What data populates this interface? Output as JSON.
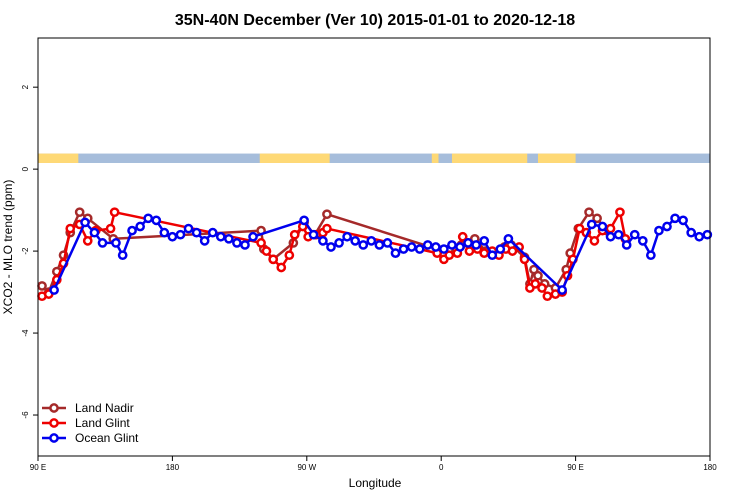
{
  "chart_data": {
    "type": "line",
    "title": "35N-40N December (Ver 10)   2015-01-01 to 2020-12-18",
    "xlabel": "Longitude",
    "ylabel": "XCO2 - MLO trend (ppm)",
    "xlim": [
      0,
      500
    ],
    "ylim": [
      -7,
      3.2
    ],
    "x_ticks": [
      {
        "value": 0,
        "label": "90 E"
      },
      {
        "value": 100,
        "label": "180"
      },
      {
        "value": 200,
        "label": "90 W"
      },
      {
        "value": 300,
        "label": "0"
      },
      {
        "value": 400,
        "label": "90 E"
      },
      {
        "value": 500,
        "label": "180"
      }
    ],
    "y_ticks": [
      {
        "value": 2,
        "label": "2"
      },
      {
        "value": 0,
        "label": "0"
      },
      {
        "value": -2,
        "label": "-2"
      },
      {
        "value": -4,
        "label": "-4"
      },
      {
        "value": -6,
        "label": "-6"
      }
    ],
    "land_ocean_band": {
      "y_range": [
        0.15,
        0.38
      ],
      "ocean_color": "#a6bddb",
      "land_color": "#fed976",
      "land_segments": [
        [
          0,
          30
        ],
        [
          165,
          217
        ],
        [
          293,
          298
        ],
        [
          308,
          364
        ],
        [
          372,
          400
        ]
      ]
    },
    "legend_position": "bottom-left",
    "series": [
      {
        "name": "Land Nadir",
        "color": "#a52a2a",
        "x": [
          3,
          8,
          14,
          19,
          24,
          31,
          37,
          56,
          166,
          168,
          175,
          190,
          198,
          206,
          215,
          297,
          302,
          306,
          315,
          320,
          325,
          333,
          347,
          352,
          362,
          366,
          369,
          372,
          377,
          385,
          393,
          396,
          402,
          410,
          416,
          423
        ],
        "y": [
          -2.85,
          -3.0,
          -2.5,
          -2.1,
          -1.55,
          -1.05,
          -1.2,
          -1.7,
          -1.5,
          -1.95,
          -2.2,
          -1.8,
          -1.3,
          -1.6,
          -1.1,
          -1.95,
          -2.1,
          -1.95,
          -1.85,
          -1.8,
          -1.7,
          -2.0,
          -1.9,
          -1.85,
          -2.15,
          -2.8,
          -2.45,
          -2.6,
          -2.8,
          -2.9,
          -2.45,
          -2.05,
          -1.45,
          -1.05,
          -1.2,
          -1.5
        ]
      },
      {
        "name": "Land Glint",
        "color": "#ee0000",
        "x": [
          3,
          8,
          14,
          19,
          24,
          31,
          37,
          43,
          54,
          57,
          166,
          170,
          175,
          181,
          187,
          191,
          197,
          201,
          207,
          212,
          215,
          297,
          302,
          306,
          312,
          316,
          321,
          327,
          332,
          338,
          343,
          348,
          353,
          358,
          362,
          366,
          370,
          375,
          379,
          385,
          390,
          394,
          398,
          403,
          408,
          414,
          420,
          426,
          433,
          437
        ],
        "y": [
          -3.1,
          -3.05,
          -2.7,
          -2.3,
          -1.45,
          -1.35,
          -1.75,
          -1.5,
          -1.45,
          -1.05,
          -1.8,
          -2.0,
          -2.2,
          -2.4,
          -2.1,
          -1.6,
          -1.4,
          -1.65,
          -1.6,
          -1.55,
          -1.45,
          -2.05,
          -2.2,
          -2.1,
          -2.05,
          -1.65,
          -2.0,
          -1.95,
          -2.05,
          -2.0,
          -2.1,
          -1.95,
          -2.0,
          -1.9,
          -2.2,
          -2.9,
          -2.8,
          -2.9,
          -3.1,
          -3.05,
          -3.0,
          -2.6,
          -2.2,
          -1.45,
          -1.55,
          -1.75,
          -1.5,
          -1.45,
          -1.05,
          -1.7
        ]
      },
      {
        "name": "Ocean Glint",
        "color": "#0000ee",
        "x": [
          12,
          35,
          42,
          48,
          58,
          63,
          70,
          76,
          82,
          88,
          94,
          100,
          106,
          112,
          118,
          124,
          130,
          136,
          142,
          148,
          154,
          160,
          198,
          205,
          212,
          218,
          224,
          230,
          236,
          242,
          248,
          254,
          260,
          266,
          272,
          278,
          284,
          290,
          296,
          302,
          308,
          314,
          320,
          326,
          332,
          338,
          344,
          350,
          390,
          412,
          420,
          426,
          432,
          438,
          444,
          450,
          456,
          462,
          468,
          474,
          480,
          486,
          492,
          498
        ],
        "y": [
          -2.95,
          -1.3,
          -1.55,
          -1.8,
          -1.8,
          -2.1,
          -1.5,
          -1.4,
          -1.2,
          -1.25,
          -1.55,
          -1.65,
          -1.6,
          -1.45,
          -1.55,
          -1.75,
          -1.55,
          -1.65,
          -1.7,
          -1.8,
          -1.85,
          -1.65,
          -1.25,
          -1.6,
          -1.75,
          -1.9,
          -1.8,
          -1.65,
          -1.75,
          -1.85,
          -1.75,
          -1.85,
          -1.8,
          -2.05,
          -1.95,
          -1.9,
          -1.95,
          -1.85,
          -1.9,
          -1.95,
          -1.85,
          -1.9,
          -1.8,
          -1.85,
          -1.75,
          -2.1,
          -1.95,
          -1.7,
          -2.95,
          -1.35,
          -1.4,
          -1.65,
          -1.6,
          -1.85,
          -1.6,
          -1.75,
          -2.1,
          -1.5,
          -1.4,
          -1.2,
          -1.25,
          -1.55,
          -1.65,
          -1.6
        ]
      }
    ]
  }
}
